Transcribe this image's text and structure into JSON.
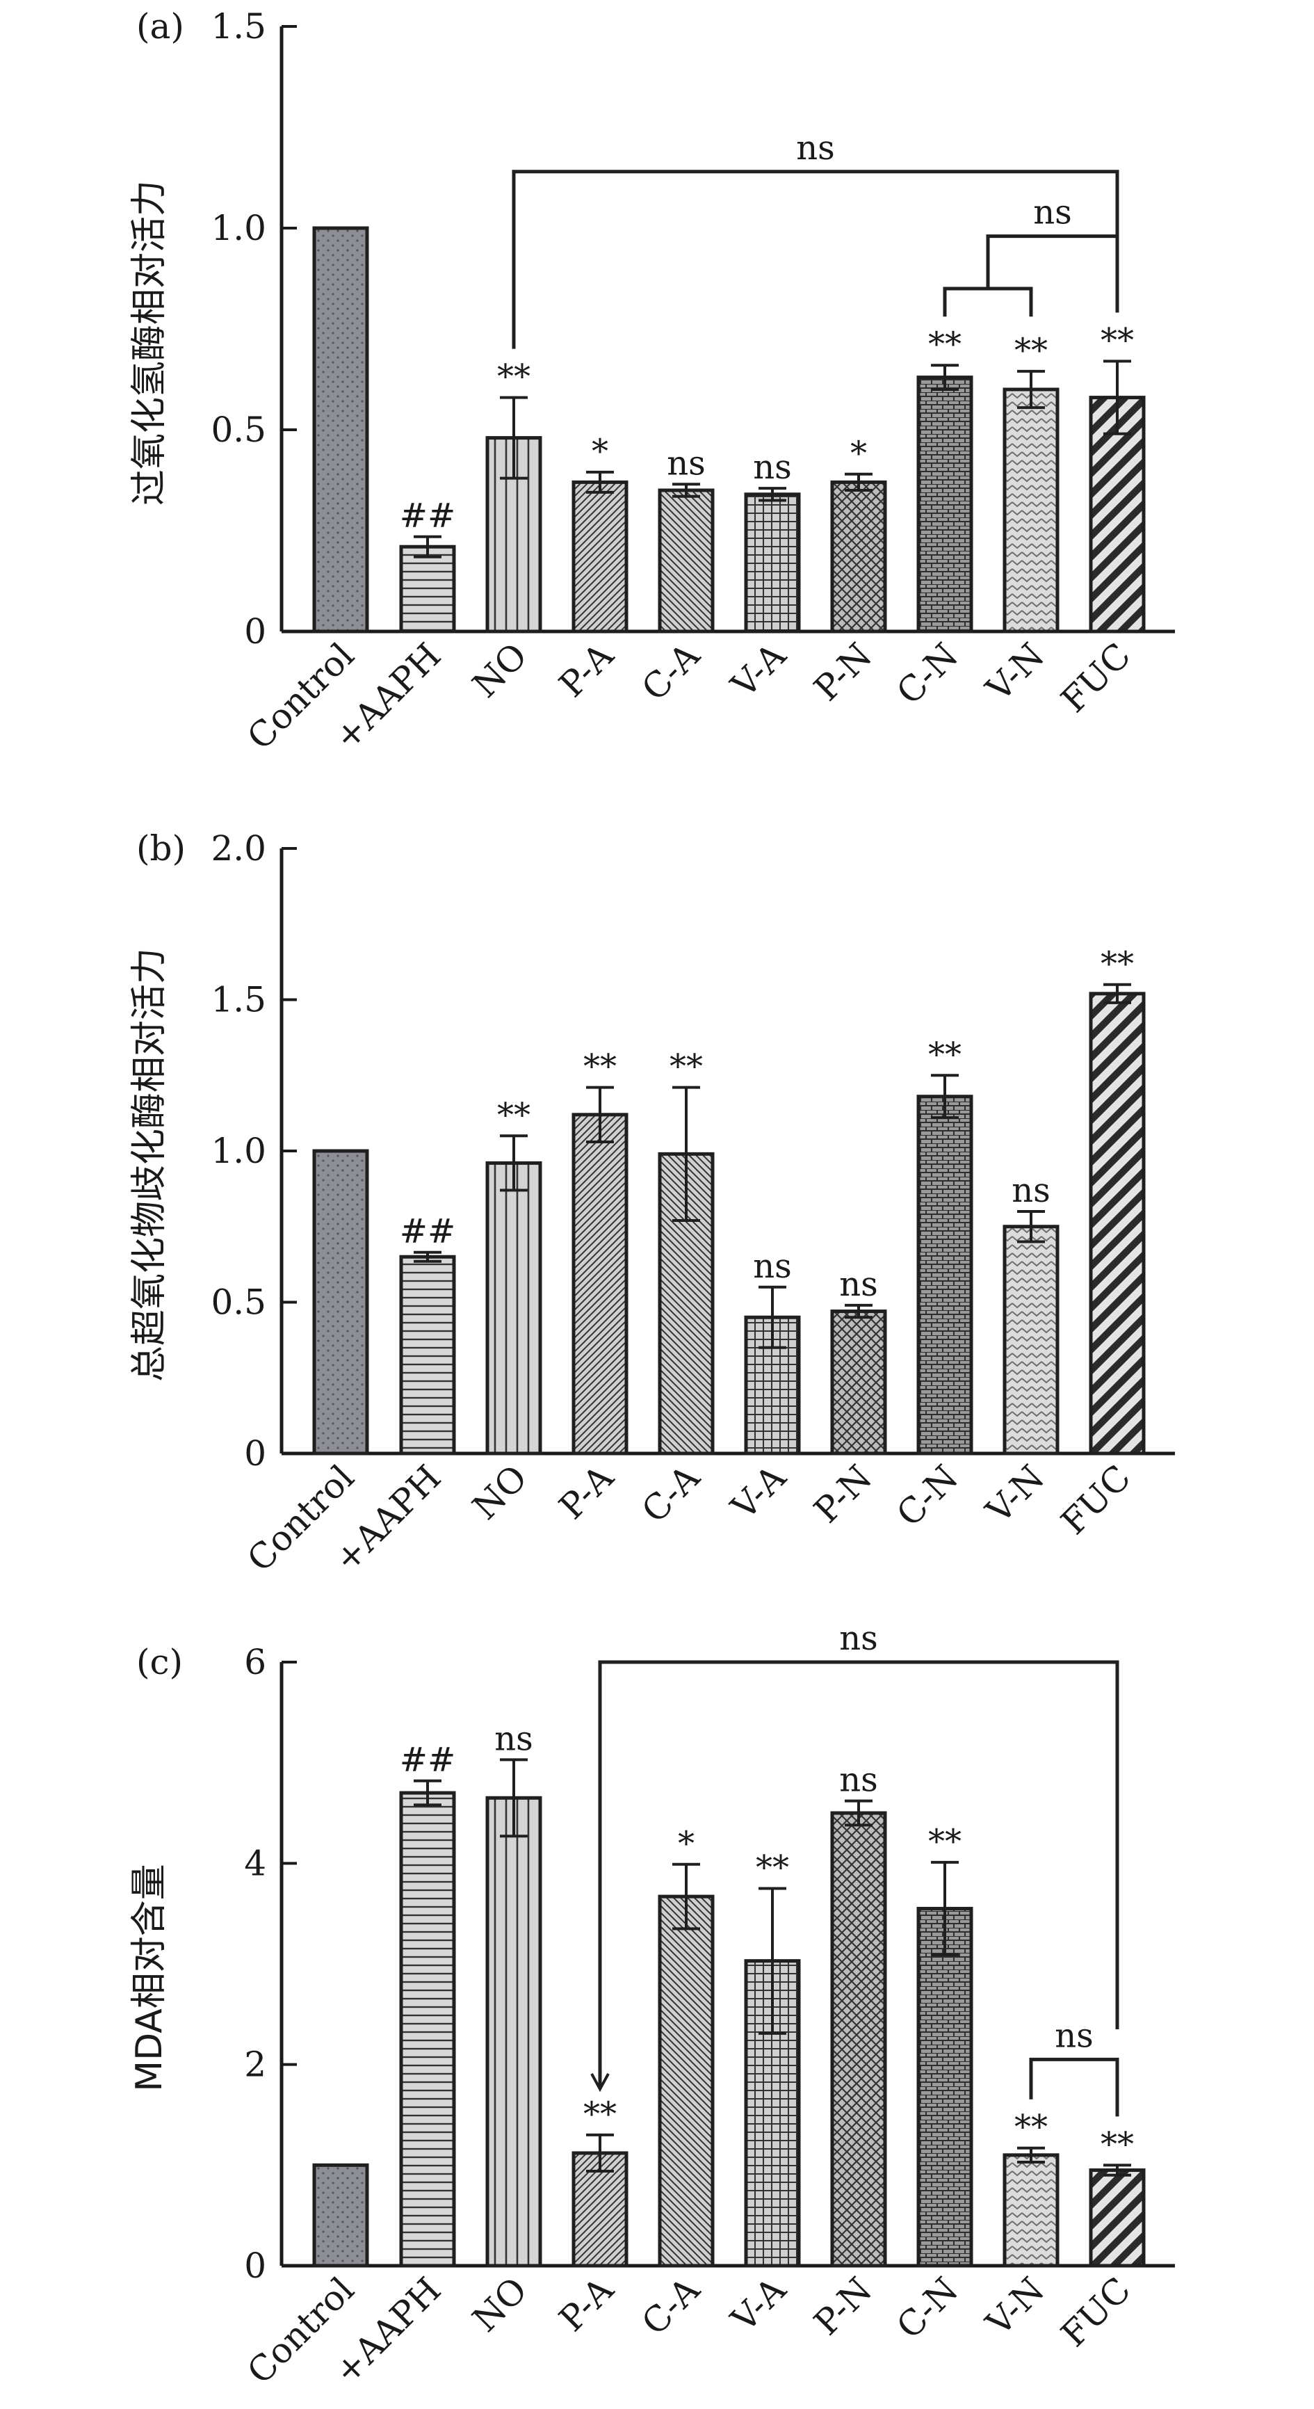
{
  "figure": {
    "categories": [
      "Control",
      "+AAPH",
      "NO",
      "P-A",
      "C-A",
      "V-A",
      "P-N",
      "C-N",
      "V-N",
      "FUC"
    ],
    "patterns": [
      "dots",
      "hlines",
      "vlines",
      "diag-fine",
      "diag-back",
      "grid",
      "zigzag",
      "brick",
      "chevron",
      "diag-thick"
    ]
  },
  "chart_data": [
    {
      "type": "bar",
      "panel_label": "(a)",
      "title": "",
      "xlabel": "",
      "ylabel": "过氧化氢酶相对活力",
      "ylim": [
        0,
        1.5
      ],
      "yticks": [
        "0",
        "0.5",
        "1.0",
        "1.5"
      ],
      "ytick_values": [
        0,
        0.5,
        1.0,
        1.5
      ],
      "categories": [
        "Control",
        "+AAPH",
        "NO",
        "P-A",
        "C-A",
        "V-A",
        "P-N",
        "C-N",
        "V-N",
        "FUC"
      ],
      "values": [
        1.0,
        0.21,
        0.48,
        0.37,
        0.35,
        0.34,
        0.37,
        0.63,
        0.6,
        0.58
      ],
      "errors": [
        0,
        0.025,
        0.1,
        0.025,
        0.015,
        0.015,
        0.02,
        0.03,
        0.045,
        0.09
      ],
      "significance": [
        "",
        "##",
        "**",
        "*",
        "ns",
        "ns",
        "*",
        "**",
        "**",
        "**"
      ],
      "brackets": [
        {
          "label": "ns",
          "from": 2,
          "to": 9,
          "y": 1.14
        },
        {
          "label": "ns",
          "from_mid": [
            7,
            8
          ],
          "to": 9,
          "y": 0.98,
          "inner_y": 0.85
        }
      ]
    },
    {
      "type": "bar",
      "panel_label": "(b)",
      "title": "",
      "xlabel": "",
      "ylabel": "总超氧化物歧化酶相对活力",
      "ylim": [
        0,
        2.0
      ],
      "yticks": [
        "0",
        "0.5",
        "1.0",
        "1.5",
        "2.0"
      ],
      "ytick_values": [
        0,
        0.5,
        1.0,
        1.5,
        2.0
      ],
      "categories": [
        "Control",
        "+AAPH",
        "NO",
        "P-A",
        "C-A",
        "V-A",
        "P-N",
        "C-N",
        "V-N",
        "FUC"
      ],
      "values": [
        1.0,
        0.65,
        0.96,
        1.12,
        0.99,
        0.45,
        0.47,
        1.18,
        0.75,
        1.52
      ],
      "errors": [
        0,
        0.015,
        0.09,
        0.09,
        0.22,
        0.1,
        0.02,
        0.07,
        0.05,
        0.03
      ],
      "significance": [
        "",
        "##",
        "**",
        "**",
        "**",
        "ns",
        "ns",
        "**",
        "ns",
        "**"
      ],
      "brackets": []
    },
    {
      "type": "bar",
      "panel_label": "(c)",
      "title": "",
      "xlabel": "",
      "ylabel": "MDA相对含量",
      "ylim": [
        0,
        6
      ],
      "yticks": [
        "0",
        "2",
        "4",
        "6"
      ],
      "ytick_values": [
        0,
        2,
        4,
        6
      ],
      "categories": [
        "Control",
        "+AAPH",
        "NO",
        "P-A",
        "C-A",
        "V-A",
        "P-N",
        "C-N",
        "V-N",
        "FUC"
      ],
      "values": [
        1.0,
        4.7,
        4.65,
        1.12,
        3.67,
        3.03,
        4.5,
        3.55,
        1.1,
        0.95
      ],
      "errors": [
        0,
        0.12,
        0.38,
        0.18,
        0.32,
        0.72,
        0.12,
        0.46,
        0.07,
        0.05
      ],
      "significance": [
        "",
        "##",
        "ns",
        "**",
        "*",
        "**",
        "ns",
        "**",
        "**",
        "**"
      ],
      "brackets": [
        {
          "label": "ns",
          "from": 3,
          "to": 9,
          "y": 6.0,
          "right_drop_to": 2.35
        },
        {
          "label": "ns",
          "from": 8,
          "to": 9,
          "y": 2.05
        }
      ]
    }
  ]
}
